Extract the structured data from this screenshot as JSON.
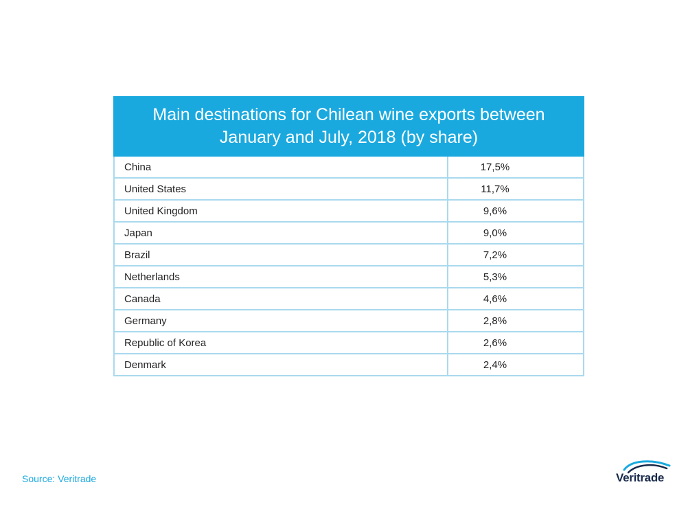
{
  "title": "Main destinations for Chilean wine exports between January and July, 2018 (by share)",
  "source": "Source: Veritrade",
  "logo_text": "Veritrade",
  "colors": {
    "header": "#1aa9df",
    "grid": "#a9d9ee",
    "text": "#222222",
    "source": "#1aa9df",
    "logo": "#1a2a4a"
  },
  "chart_data": {
    "type": "table",
    "title": "Main destinations for Chilean wine exports between January and July, 2018 (by share)",
    "rows": [
      {
        "country": "China",
        "share": "17,5%"
      },
      {
        "country": "United States",
        "share": "11,7%"
      },
      {
        "country": "United Kingdom",
        "share": "9,6%"
      },
      {
        "country": "Japan",
        "share": "9,0%"
      },
      {
        "country": "Brazil",
        "share": "7,2%"
      },
      {
        "country": "Netherlands",
        "share": "5,3%"
      },
      {
        "country": "Canada",
        "share": "4,6%"
      },
      {
        "country": "Germany",
        "share": "2,8%"
      },
      {
        "country": "Republic of Korea",
        "share": "2,6%"
      },
      {
        "country": "Denmark",
        "share": "2,4%"
      }
    ]
  }
}
